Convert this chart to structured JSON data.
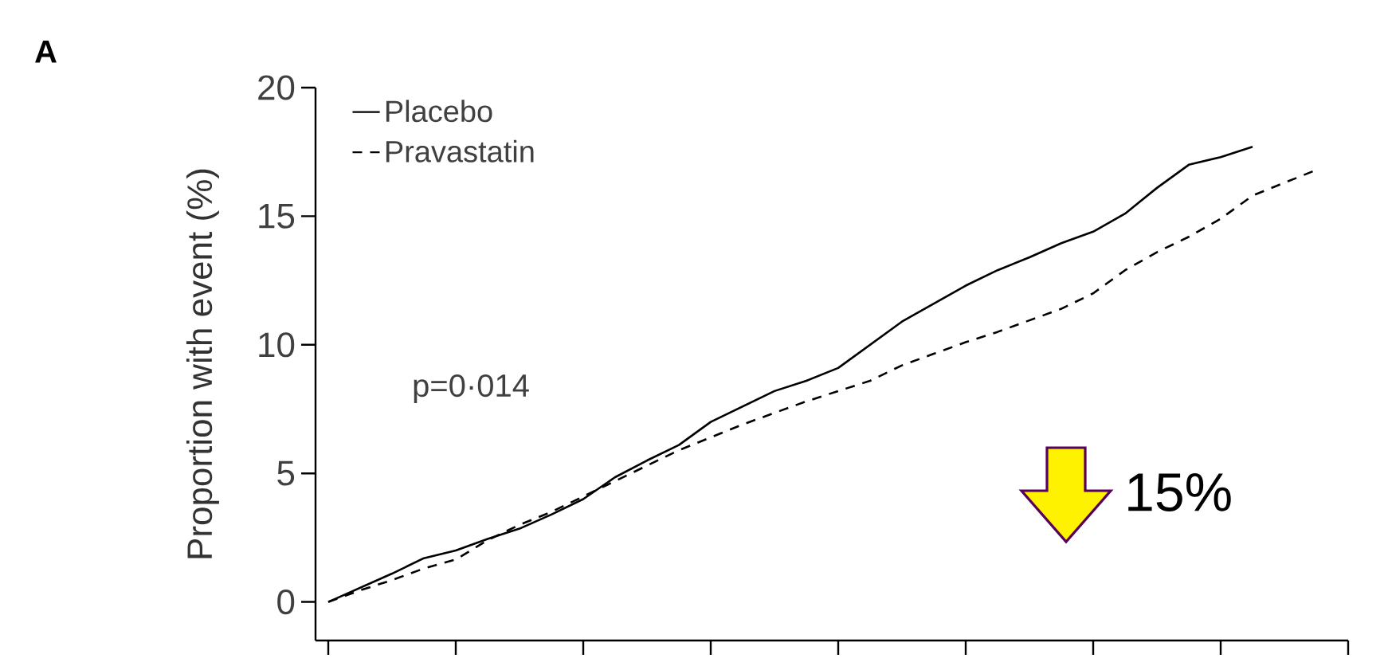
{
  "chart_data": {
    "type": "line",
    "ylabel": "Proportion with event (%)",
    "annotations": [
      "A",
      "p=0·014",
      "15%"
    ],
    "categories": [
      null,
      null,
      null,
      null,
      null,
      null,
      null,
      null,
      null,
      null,
      null,
      null,
      null,
      null,
      null,
      null,
      null,
      null,
      null,
      null,
      null,
      null,
      null,
      null,
      null,
      null,
      null,
      null,
      null,
      null,
      null,
      null,
      null
    ],
    "ylim": [
      -1.5,
      20
    ],
    "yticks": [
      0,
      5,
      10,
      15,
      20
    ],
    "tick_labels": "y",
    "legend": "top left",
    "series": [
      {
        "name": "Placebo",
        "color": "#000000",
        "line_style": "solid",
        "values": [
          0,
          0.55,
          1.1,
          1.7,
          2.0,
          2.45,
          2.85,
          3.4,
          4.0,
          4.85,
          5.5,
          6.1,
          7.0,
          7.6,
          8.2,
          8.6,
          9.1,
          10.0,
          10.9,
          11.6,
          12.3,
          12.9,
          13.4,
          13.95,
          14.4,
          15.1,
          16.1,
          17.0,
          17.3,
          17.7,
          null,
          null,
          null
        ]
      },
      {
        "name": "Pravastatin",
        "color": "#000000",
        "line_style": "dashed",
        "values": [
          0,
          0.45,
          0.85,
          1.3,
          1.65,
          2.4,
          3.0,
          3.5,
          4.1,
          4.7,
          5.3,
          5.9,
          6.4,
          6.9,
          7.35,
          7.8,
          8.2,
          8.6,
          9.2,
          9.65,
          10.1,
          10.5,
          10.95,
          11.4,
          12.0,
          12.9,
          13.6,
          14.2,
          14.9,
          15.8,
          16.3,
          16.8,
          null
        ]
      }
    ]
  }
}
